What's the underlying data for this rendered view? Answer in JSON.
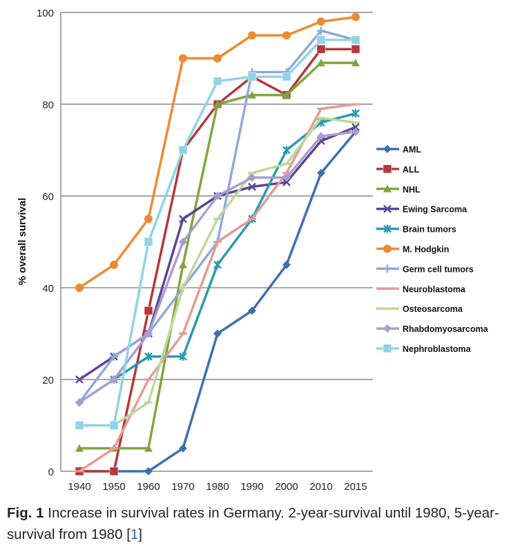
{
  "chart_data": {
    "type": "line",
    "ylabel": "% overall survival",
    "ylim": [
      0,
      100
    ],
    "yticks": [
      0,
      20,
      40,
      60,
      80,
      100
    ],
    "grid": true,
    "legend_position": "right",
    "categories": [
      "1940",
      "1950",
      "1960",
      "1970",
      "1980",
      "1990",
      "2000",
      "2010",
      "2015"
    ],
    "series": [
      {
        "name": "AML",
        "color": "#3f6fae",
        "marker": "diamond",
        "values": [
          0,
          0,
          0,
          5,
          30,
          35,
          45,
          65,
          74
        ]
      },
      {
        "name": "ALL",
        "color": "#b5383a",
        "marker": "square",
        "values": [
          0,
          0,
          35,
          70,
          80,
          86,
          82,
          92,
          92
        ]
      },
      {
        "name": "NHL",
        "color": "#7fa63c",
        "marker": "triangle",
        "values": [
          5,
          5,
          5,
          45,
          80,
          82,
          82,
          89,
          89
        ]
      },
      {
        "name": "Ewing Sarcoma",
        "color": "#5e4596",
        "marker": "x",
        "values": [
          20,
          25,
          30,
          55,
          60,
          62,
          63,
          72,
          75
        ]
      },
      {
        "name": "Brain tumors",
        "color": "#2a9bb0",
        "marker": "star",
        "values": [
          null,
          20,
          25,
          25,
          45,
          55,
          70,
          76,
          78
        ]
      },
      {
        "name": "M. Hodgkin",
        "color": "#ee8a32",
        "marker": "circle",
        "values": [
          40,
          45,
          55,
          90,
          90,
          95,
          95,
          98,
          99
        ]
      },
      {
        "name": "Germ cell tumors",
        "color": "#8fa9d8",
        "marker": "plus",
        "values": [
          15,
          25,
          30,
          40,
          50,
          87,
          87,
          96,
          94
        ]
      },
      {
        "name": "Neuroblastoma",
        "color": "#e49a98",
        "marker": "dash",
        "values": [
          0,
          5,
          20,
          30,
          50,
          55,
          65,
          79,
          80
        ]
      },
      {
        "name": "Osteosarcoma",
        "color": "#bcd89a",
        "marker": "dash",
        "values": [
          null,
          10,
          15,
          40,
          55,
          65,
          67,
          77,
          76
        ]
      },
      {
        "name": "Rhabdomyosarcoma",
        "color": "#a99cd2",
        "marker": "diamond",
        "values": [
          15,
          20,
          30,
          50,
          60,
          64,
          64,
          73,
          74
        ]
      },
      {
        "name": "Nephroblastoma",
        "color": "#8fd3e6",
        "marker": "square",
        "values": [
          10,
          10,
          50,
          70,
          85,
          86,
          86,
          94,
          94
        ]
      }
    ]
  },
  "caption": {
    "label": "Fig. 1",
    "text": " Increase in survival rates in Germany. 2-year-survival until 1980, 5-year-survival from 1980 ",
    "ref_open": "[",
    "ref": "1",
    "ref_close": "]"
  }
}
